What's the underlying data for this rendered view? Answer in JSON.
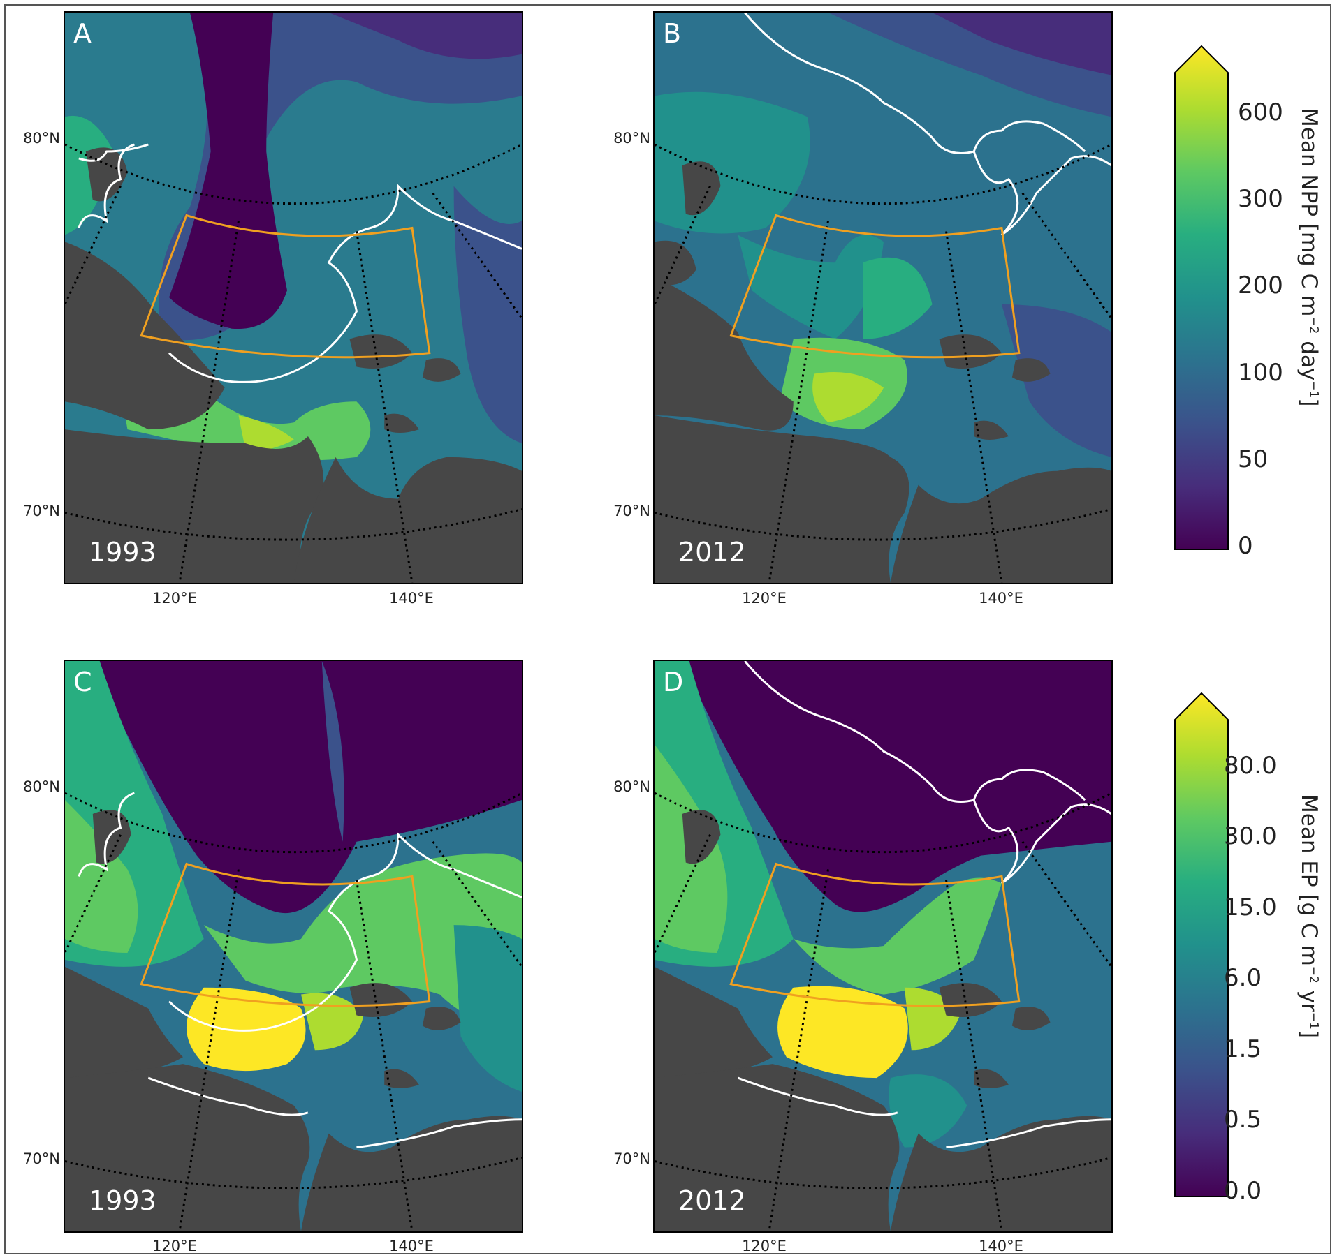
{
  "panels": [
    {
      "label": "A",
      "year": "1993",
      "variable": "NPP"
    },
    {
      "label": "B",
      "year": "2012",
      "variable": "NPP"
    },
    {
      "label": "C",
      "year": "1993",
      "variable": "EP"
    },
    {
      "label": "D",
      "year": "2012",
      "variable": "EP"
    }
  ],
  "graticule": {
    "lat_labels": [
      "80°N",
      "70°N"
    ],
    "lon_labels": [
      "120°E",
      "140°E"
    ]
  },
  "colorbars": {
    "npp": {
      "title_prefix": "Mean NPP [mg C m",
      "title_exp1": "−2",
      "title_mid": " day",
      "title_exp2": "−1",
      "title_suffix": "]",
      "ticks": [
        "600",
        "300",
        "200",
        "100",
        "50",
        "0"
      ]
    },
    "ep": {
      "title_prefix": "Mean EP [g C m",
      "title_exp1": "−2",
      "title_mid": " yr",
      "title_exp2": "−1",
      "title_suffix": "]",
      "ticks": [
        "80.0",
        "30.0",
        "15.0",
        "6.0",
        "1.5",
        "0.5",
        "0.0"
      ]
    }
  },
  "colors": {
    "land": "#474747",
    "box": "#f0a020",
    "ice_edge": "#ffffff",
    "viridis": [
      "#440154",
      "#472d7b",
      "#3b528b",
      "#2c728e",
      "#21918c",
      "#28ae80",
      "#5ec962",
      "#addc30",
      "#fde725"
    ]
  }
}
